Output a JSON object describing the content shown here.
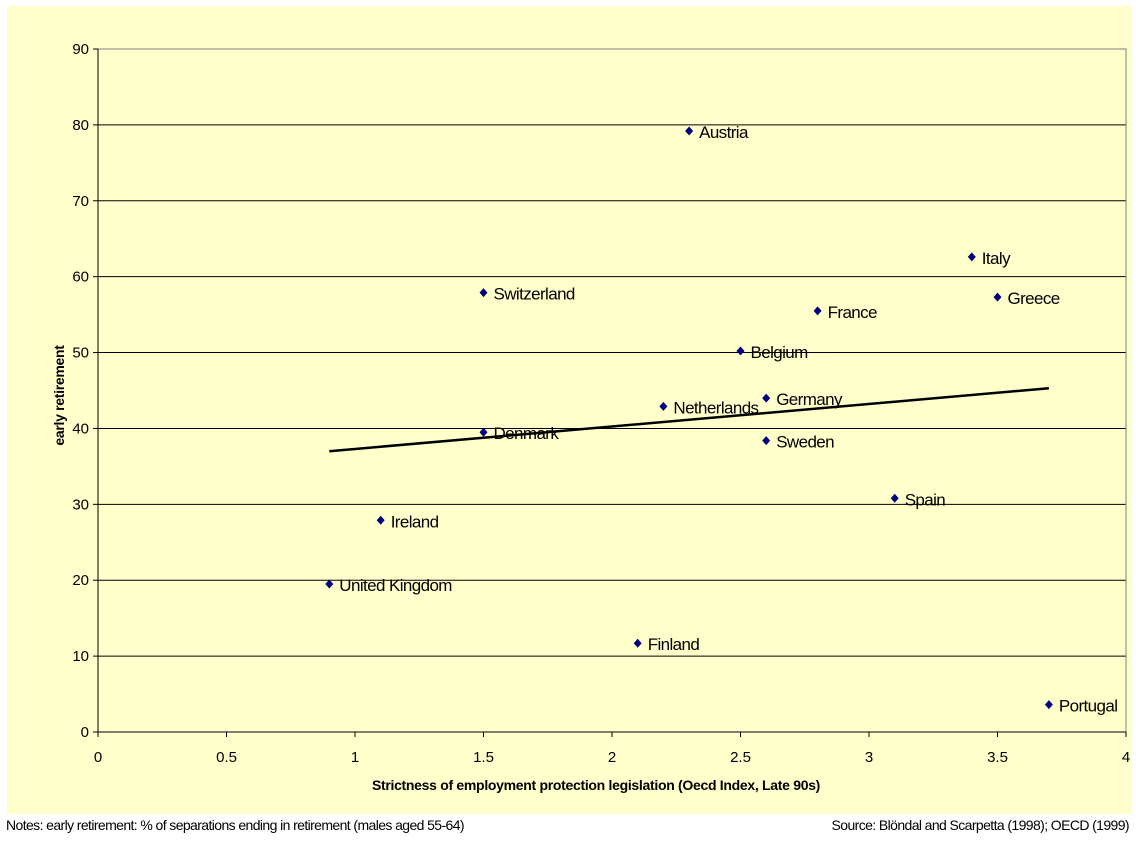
{
  "chart_data": {
    "type": "scatter",
    "xlabel": "Strictness of employment protection  legislation (Oecd Index, Late 90s)",
    "ylabel": "early retirement",
    "xlim": [
      0,
      4
    ],
    "ylim": [
      0,
      90
    ],
    "x_ticks": [
      "0",
      "0.5",
      "1",
      "1.5",
      "2",
      "2.5",
      "3",
      "3.5",
      "4"
    ],
    "y_ticks": [
      "0",
      "10",
      "20",
      "30",
      "40",
      "50",
      "60",
      "70",
      "80",
      "90"
    ],
    "grid": "horizontal",
    "marker_color": "#000080",
    "trendline_color": "#000000",
    "points": [
      {
        "label": "Austria",
        "x": 2.3,
        "y": 79.2
      },
      {
        "label": "Italy",
        "x": 3.4,
        "y": 62.6
      },
      {
        "label": "Switzerland",
        "x": 1.5,
        "y": 57.9
      },
      {
        "label": "Greece",
        "x": 3.5,
        "y": 57.3
      },
      {
        "label": "France",
        "x": 2.8,
        "y": 55.5
      },
      {
        "label": "Belgium",
        "x": 2.5,
        "y": 50.2
      },
      {
        "label": "Germany",
        "x": 2.6,
        "y": 44.0
      },
      {
        "label": "Netherlands",
        "x": 2.2,
        "y": 42.9
      },
      {
        "label": "Denmark",
        "x": 1.5,
        "y": 39.5
      },
      {
        "label": "Sweden",
        "x": 2.6,
        "y": 38.4
      },
      {
        "label": "Spain",
        "x": 3.1,
        "y": 30.8
      },
      {
        "label": "Ireland",
        "x": 1.1,
        "y": 27.9
      },
      {
        "label": "United Kingdom",
        "x": 0.9,
        "y": 19.5
      },
      {
        "label": "Finland",
        "x": 2.1,
        "y": 11.7
      },
      {
        "label": "Portugal",
        "x": 3.7,
        "y": 3.6
      }
    ],
    "trendline": {
      "x": [
        0.9,
        3.7
      ],
      "y": [
        37.0,
        45.3
      ]
    }
  },
  "footer": {
    "notes": "Notes: early retirement: % of separations ending in retirement (males aged 55-64)",
    "source": "Source: Blöndal and Scarpetta (1998); OECD (1999)"
  }
}
